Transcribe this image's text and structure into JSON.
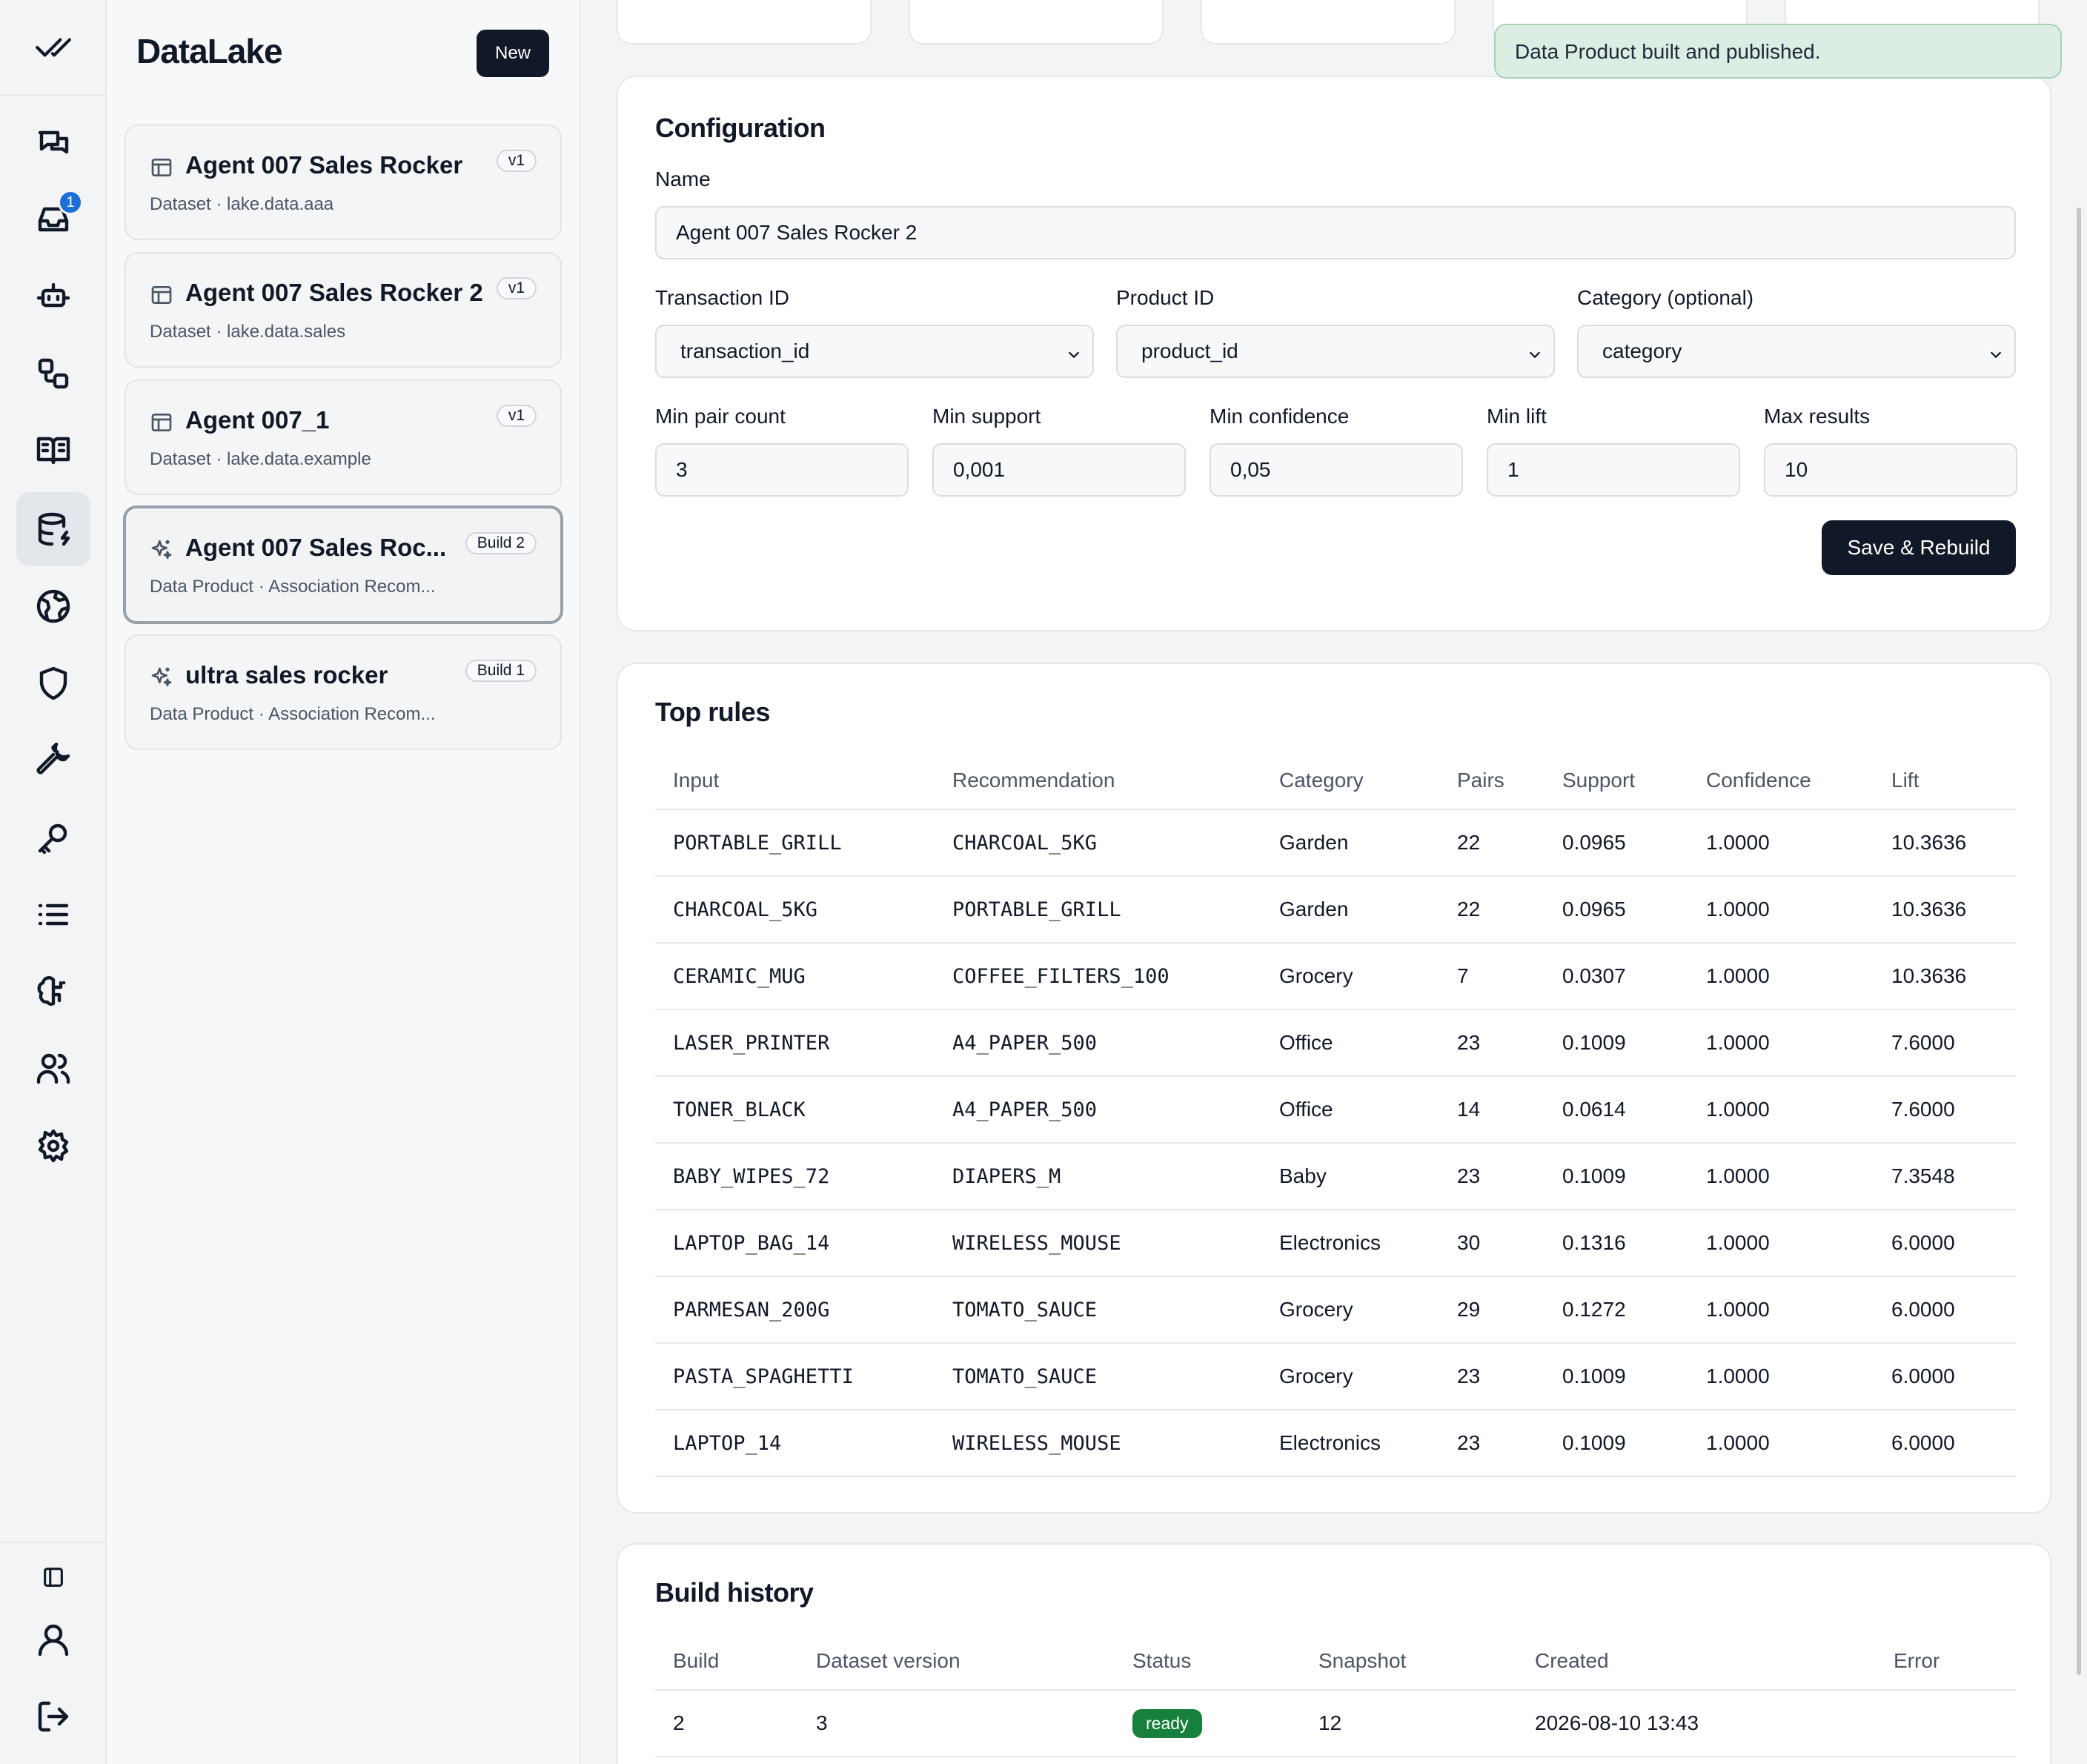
{
  "app": {
    "brand": "DataLake",
    "new_label": "New"
  },
  "rail": {
    "inbox_badge": "1",
    "icons": [
      "check-all-icon",
      "chat-icon",
      "inbox-icon",
      "bot-icon",
      "workflow-icon",
      "book-icon",
      "database-icon",
      "globe-icon",
      "shield-icon",
      "wrench-icon",
      "key-icon",
      "list-icon",
      "brain-icon",
      "users-icon",
      "gear-icon",
      "sidebar-toggle-icon",
      "user-icon",
      "logout-icon"
    ]
  },
  "sidebar": {
    "items": [
      {
        "title": "Agent 007 Sales Rocker",
        "sub": "Dataset · lake.data.aaa",
        "badge": "v1",
        "icon": "table-icon"
      },
      {
        "title": "Agent 007 Sales Rocker 2",
        "sub": "Dataset · lake.data.sales",
        "badge": "v1",
        "icon": "table-icon"
      },
      {
        "title": "Agent 007_1",
        "sub": "Dataset · lake.data.example",
        "badge": "v1",
        "icon": "table-icon"
      },
      {
        "title": "Agent 007 Sales Roc...",
        "sub": "Data Product · Association Recom...",
        "badge": "Build 2",
        "icon": "sparkle-icon"
      },
      {
        "title": "ultra sales rocker",
        "sub": "Data Product · Association Recom...",
        "badge": "Build 1",
        "icon": "sparkle-icon"
      }
    ]
  },
  "toast": {
    "message": "Data Product built and published."
  },
  "config": {
    "title": "Configuration",
    "name_label": "Name",
    "name_value": "Agent 007 Sales Rocker 2",
    "transaction_label": "Transaction ID",
    "transaction_value": "transaction_id",
    "product_label": "Product ID",
    "product_value": "product_id",
    "category_label": "Category (optional)",
    "category_value": "category",
    "min_pair_label": "Min pair count",
    "min_pair_value": "3",
    "min_support_label": "Min support",
    "min_support_value": "0,001",
    "min_conf_label": "Min confidence",
    "min_conf_value": "0,05",
    "min_lift_label": "Min lift",
    "min_lift_value": "1",
    "max_results_label": "Max results",
    "max_results_value": "10",
    "save_label": "Save & Rebuild"
  },
  "rules": {
    "title": "Top rules",
    "columns": [
      "Input",
      "Recommendation",
      "Category",
      "Pairs",
      "Support",
      "Confidence",
      "Lift"
    ],
    "rows": [
      [
        "PORTABLE_GRILL",
        "CHARCOAL_5KG",
        "Garden",
        "22",
        "0.0965",
        "1.0000",
        "10.3636"
      ],
      [
        "CHARCOAL_5KG",
        "PORTABLE_GRILL",
        "Garden",
        "22",
        "0.0965",
        "1.0000",
        "10.3636"
      ],
      [
        "CERAMIC_MUG",
        "COFFEE_FILTERS_100",
        "Grocery",
        "7",
        "0.0307",
        "1.0000",
        "10.3636"
      ],
      [
        "LASER_PRINTER",
        "A4_PAPER_500",
        "Office",
        "23",
        "0.1009",
        "1.0000",
        "7.6000"
      ],
      [
        "TONER_BLACK",
        "A4_PAPER_500",
        "Office",
        "14",
        "0.0614",
        "1.0000",
        "7.6000"
      ],
      [
        "BABY_WIPES_72",
        "DIAPERS_M",
        "Baby",
        "23",
        "0.1009",
        "1.0000",
        "7.3548"
      ],
      [
        "LAPTOP_BAG_14",
        "WIRELESS_MOUSE",
        "Electronics",
        "30",
        "0.1316",
        "1.0000",
        "6.0000"
      ],
      [
        "PARMESAN_200G",
        "TOMATO_SAUCE",
        "Grocery",
        "29",
        "0.1272",
        "1.0000",
        "6.0000"
      ],
      [
        "PASTA_SPAGHETTI",
        "TOMATO_SAUCE",
        "Grocery",
        "23",
        "0.1009",
        "1.0000",
        "6.0000"
      ],
      [
        "LAPTOP_14",
        "WIRELESS_MOUSE",
        "Electronics",
        "23",
        "0.1009",
        "1.0000",
        "6.0000"
      ]
    ]
  },
  "history": {
    "title": "Build history",
    "columns": [
      "Build",
      "Dataset version",
      "Status",
      "Snapshot",
      "Created",
      "Error"
    ],
    "rows": [
      [
        "2",
        "3",
        "ready",
        "12",
        "2026-08-10 13:43",
        ""
      ]
    ],
    "status_color": "#16803c"
  }
}
